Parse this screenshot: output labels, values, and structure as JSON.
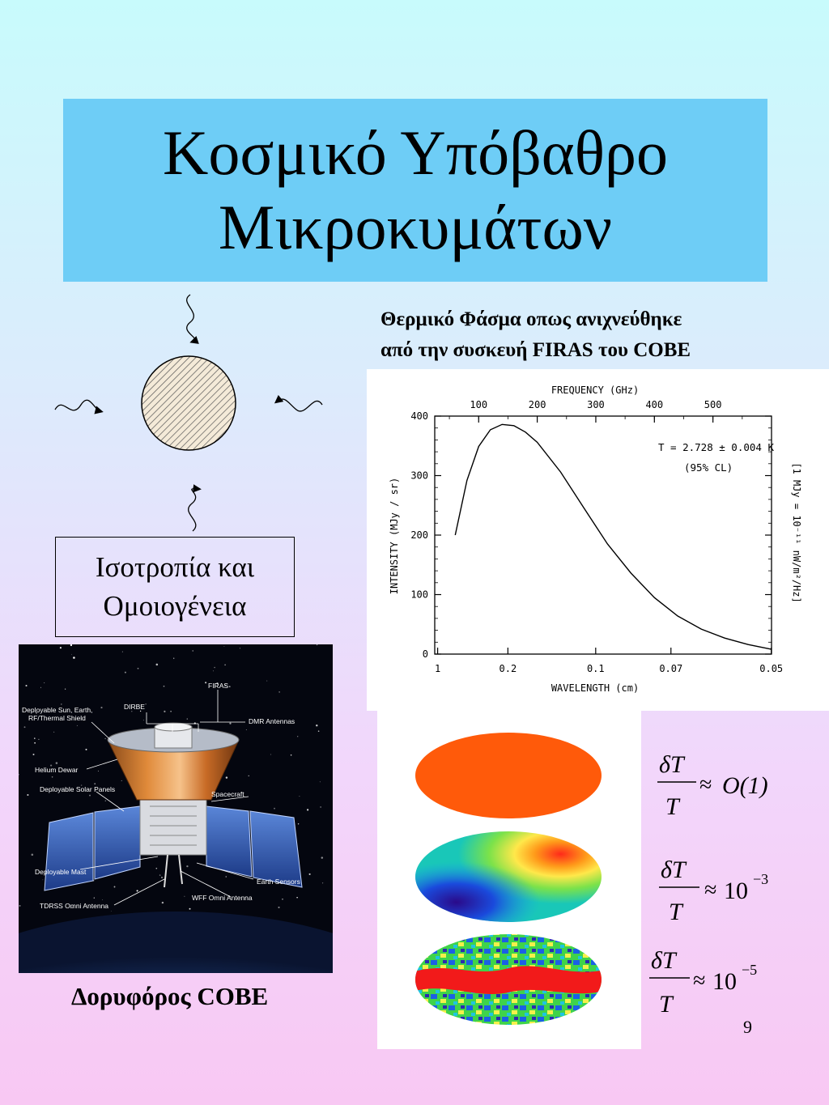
{
  "title": {
    "line1": "Κοσμικό Υπόβαθρο",
    "line2": "Μικροκυμάτων"
  },
  "colors": {
    "title_box": "#6ecdf6",
    "background_top": "#c8fbfc",
    "background_bottom": "#f8c8f3"
  },
  "diagram": {
    "icons": [
      "hatched-sphere-icon",
      "wavy-arrow-icon"
    ]
  },
  "isotropy_box": {
    "line1": "Ισοτροπία και",
    "line2": "Ομοιογένεια"
  },
  "firas_caption": {
    "line1": "Θερμικό Φάσμα οπως ανιχνεύθηκε",
    "line2": "από την συσκευή FIRAS του COBE"
  },
  "chart_data": {
    "type": "line",
    "top_axis_label": "FREQUENCY (GHz)",
    "top_ticks": [
      "100",
      "200",
      "300",
      "400",
      "500"
    ],
    "top_tick_values": [
      100,
      200,
      300,
      400,
      500
    ],
    "xlabel": "WAVELENGTH (cm)",
    "x_ticks": [
      "1",
      "0.2",
      "0.1",
      "0.07",
      "0.05"
    ],
    "ylabel": "INTENSITY (MJy / sr)",
    "y_ticks": [
      "0",
      "100",
      "200",
      "300",
      "400"
    ],
    "ylim": [
      0,
      400
    ],
    "xlim_ghz": [
      25,
      600
    ],
    "right_label": "[1 MJy = 10⁻¹¹ nW/m²/Hz]",
    "annotation_line1": "T = 2.728 ± 0.004 K",
    "annotation_line2": "(95% CL)",
    "series": [
      {
        "x": [
          60,
          80,
          100,
          120,
          140,
          160,
          180,
          200,
          240,
          280,
          320,
          360,
          400,
          440,
          480,
          520,
          560,
          600
        ],
        "y": [
          200,
          292,
          349,
          377,
          386,
          384,
          373,
          356,
          306,
          245,
          185,
          136,
          95,
          64,
          42,
          27,
          16,
          8
        ]
      }
    ]
  },
  "cobe_image": {
    "labels": {
      "firas": "FIRAS",
      "dirbe": "DIRBE",
      "shield": "Deployable Sun, Earth,",
      "shield2": "RF/Thermal Shield",
      "dmr": "DMR Antennas",
      "dewar": "Helium Dewar",
      "solar": "Deployable Solar Panels",
      "spacecraft": "Spacecraft",
      "mast": "Deployable Mast",
      "earth_sensors": "Earth Sensors",
      "wff": "WFF Omni Antenna",
      "tdrss": "TDRSS Omni Antenna"
    }
  },
  "cobe_caption": "Δορυφόρος COBE",
  "equations": [
    {
      "numerator": "δT",
      "denominator": "T",
      "rhs": "≈",
      "value": "O(1)"
    },
    {
      "numerator": "δT",
      "denominator": "T",
      "rhs": "≈",
      "base": "10",
      "exp": "−3"
    },
    {
      "numerator": "δT",
      "denominator": "T",
      "rhs": "≈",
      "base": "10",
      "exp": "−5"
    }
  ],
  "page_number": "9"
}
